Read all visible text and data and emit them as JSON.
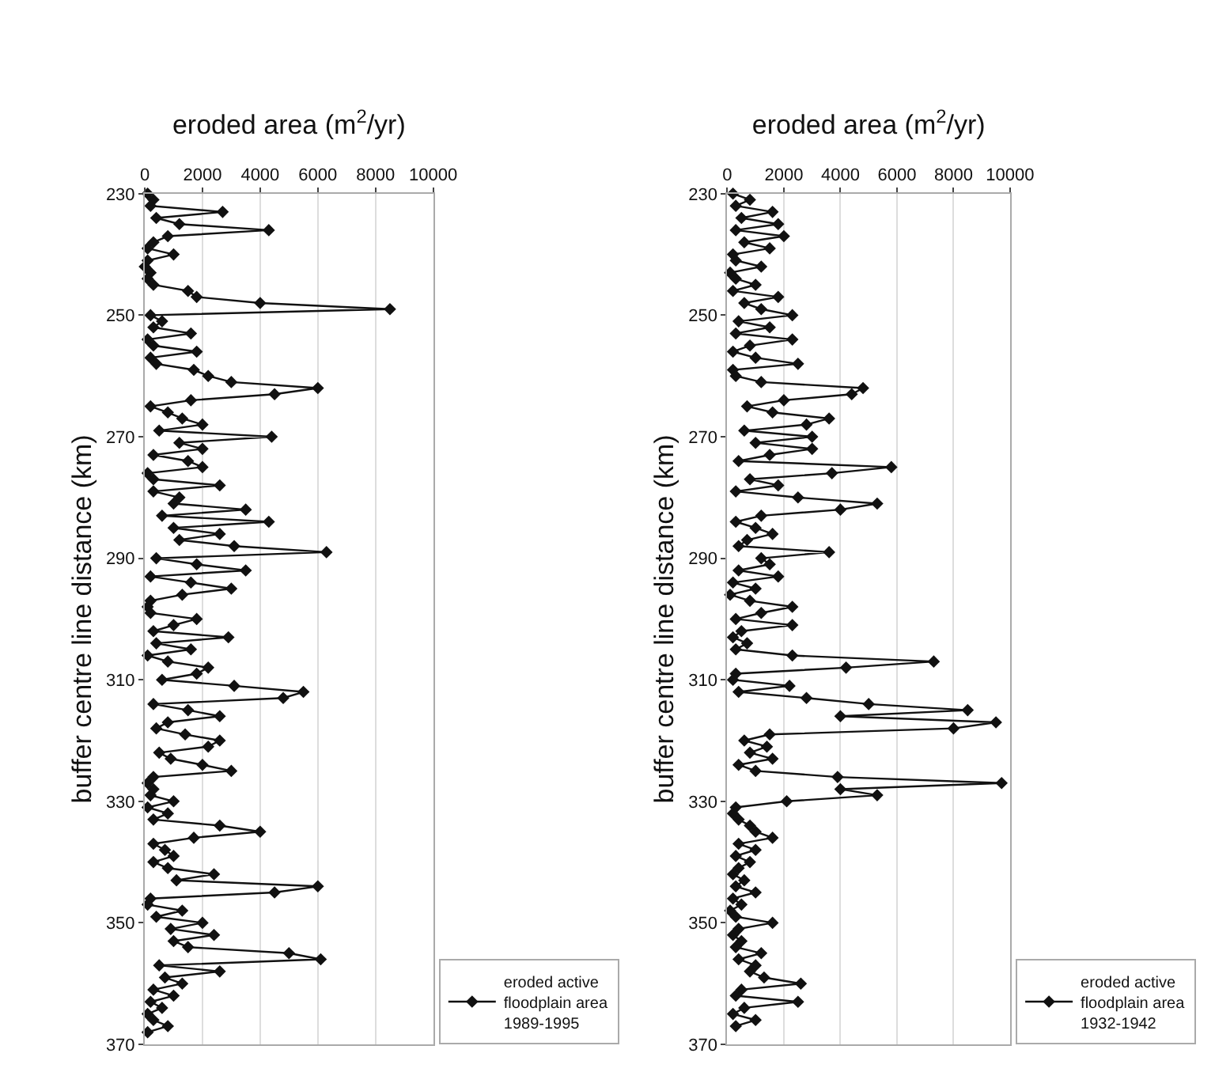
{
  "chart_data": [
    {
      "type": "line",
      "orientation": "horizontal",
      "ylabel": "buffer centre line distance (km)",
      "xlabel": "eroded area (m$^{2}$/yr)",
      "ylim": [
        370,
        230
      ],
      "yticks": [
        230,
        250,
        270,
        290,
        310,
        330,
        350,
        370
      ],
      "xlim": [
        0,
        10000
      ],
      "xticks": [
        0,
        2000,
        4000,
        6000,
        8000,
        10000
      ],
      "grid": "x",
      "legend": "right",
      "marker": "diamond",
      "line_style": "solid",
      "x": [
        230,
        231,
        232,
        233,
        234,
        235,
        236,
        237,
        238,
        239,
        240,
        241,
        242,
        243,
        244,
        245,
        246,
        247,
        248,
        249,
        250,
        251,
        252,
        253,
        254,
        255,
        256,
        257,
        258,
        259,
        260,
        261,
        262,
        263,
        264,
        265,
        266,
        267,
        268,
        269,
        270,
        271,
        272,
        273,
        274,
        275,
        276,
        277,
        278,
        279,
        280,
        281,
        282,
        283,
        284,
        285,
        286,
        287,
        288,
        289,
        290,
        291,
        292,
        293,
        294,
        295,
        296,
        297,
        298,
        299,
        300,
        301,
        302,
        303,
        304,
        305,
        306,
        307,
        308,
        309,
        310,
        311,
        312,
        313,
        314,
        315,
        316,
        317,
        318,
        319,
        320,
        321,
        322,
        323,
        324,
        325,
        326,
        327,
        328,
        329,
        330,
        331,
        332,
        333,
        334,
        335,
        336,
        337,
        338,
        339,
        340,
        341,
        342,
        343,
        344,
        345,
        346,
        347,
        348,
        349,
        350,
        351,
        352,
        353,
        354,
        355,
        356,
        357,
        358,
        359,
        360,
        361,
        362,
        363,
        364,
        365,
        366,
        367,
        368
      ],
      "series": [
        {
          "name": "eroded active floodplain area 1989-1995",
          "color": "#111111",
          "values": [
            100,
            300,
            200,
            2700,
            400,
            1200,
            4300,
            800,
            300,
            100,
            1000,
            100,
            0,
            200,
            100,
            300,
            1500,
            1800,
            4000,
            8500,
            200,
            600,
            300,
            1600,
            100,
            300,
            1800,
            200,
            400,
            1700,
            2200,
            3000,
            6000,
            4500,
            1600,
            200,
            800,
            1300,
            2000,
            500,
            4400,
            1200,
            2000,
            300,
            1500,
            2000,
            100,
            300,
            2600,
            300,
            1200,
            1000,
            3500,
            600,
            4300,
            1000,
            2600,
            1200,
            3100,
            6300,
            400,
            1800,
            3500,
            200,
            1600,
            3000,
            1300,
            200,
            100,
            200,
            1800,
            1000,
            300,
            2900,
            400,
            1600,
            100,
            800,
            2200,
            1800,
            600,
            3100,
            5500,
            4800,
            300,
            1500,
            2600,
            800,
            400,
            1400,
            2600,
            2200,
            500,
            900,
            2000,
            3000,
            300,
            100,
            300,
            200,
            1000,
            100,
            800,
            300,
            2600,
            4000,
            1700,
            300,
            700,
            1000,
            300,
            800,
            2400,
            1100,
            6000,
            4500,
            200,
            100,
            1300,
            400,
            2000,
            900,
            2400,
            1000,
            1500,
            5000,
            6100,
            500,
            2600,
            700,
            1300,
            300,
            1000,
            200,
            600,
            100,
            300,
            800,
            100
          ]
        }
      ]
    },
    {
      "type": "line",
      "orientation": "horizontal",
      "ylabel": "buffer centre line distance (km)",
      "xlabel": "eroded area (m$^{2}$/yr)",
      "ylim": [
        370,
        230
      ],
      "yticks": [
        230,
        250,
        270,
        290,
        310,
        330,
        350,
        370
      ],
      "xlim": [
        0,
        10000
      ],
      "xticks": [
        0,
        2000,
        4000,
        6000,
        8000,
        10000
      ],
      "grid": "x",
      "legend": "right",
      "marker": "diamond",
      "line_style": "solid",
      "x": [
        230,
        231,
        232,
        233,
        234,
        235,
        236,
        237,
        238,
        239,
        240,
        241,
        242,
        243,
        244,
        245,
        246,
        247,
        248,
        249,
        250,
        251,
        252,
        253,
        254,
        255,
        256,
        257,
        258,
        259,
        260,
        261,
        262,
        263,
        264,
        265,
        266,
        267,
        268,
        269,
        270,
        271,
        272,
        273,
        274,
        275,
        276,
        277,
        278,
        279,
        280,
        281,
        282,
        283,
        284,
        285,
        286,
        287,
        288,
        289,
        290,
        291,
        292,
        293,
        294,
        295,
        296,
        297,
        298,
        299,
        300,
        301,
        302,
        303,
        304,
        305,
        306,
        307,
        308,
        309,
        310,
        311,
        312,
        313,
        314,
        315,
        316,
        317,
        318,
        319,
        320,
        321,
        322,
        323,
        324,
        325,
        326,
        327,
        328,
        329,
        330,
        331,
        332,
        333,
        334,
        335,
        336,
        337,
        338,
        339,
        340,
        341,
        342,
        343,
        344,
        345,
        346,
        347,
        348,
        349,
        350,
        351,
        352,
        353,
        354,
        355,
        356,
        357,
        358,
        359,
        360,
        361,
        362,
        363,
        364,
        365,
        366,
        367
      ],
      "series": [
        {
          "name": "eroded active floodplain area 1932-1942",
          "color": "#111111",
          "values": [
            200,
            800,
            300,
            1600,
            500,
            1800,
            300,
            2000,
            600,
            1500,
            200,
            300,
            1200,
            100,
            300,
            1000,
            200,
            1800,
            600,
            1200,
            2300,
            400,
            1500,
            300,
            2300,
            800,
            200,
            1000,
            2500,
            200,
            300,
            1200,
            4800,
            4400,
            2000,
            700,
            1600,
            3600,
            2800,
            600,
            3000,
            1000,
            3000,
            1500,
            400,
            5800,
            3700,
            800,
            1800,
            300,
            2500,
            5300,
            4000,
            1200,
            300,
            1000,
            1600,
            700,
            400,
            3600,
            1200,
            1500,
            400,
            1800,
            200,
            1000,
            100,
            800,
            2300,
            1200,
            300,
            2300,
            500,
            200,
            700,
            300,
            2300,
            7300,
            4200,
            300,
            200,
            2200,
            400,
            2800,
            5000,
            8500,
            4000,
            9500,
            8000,
            1500,
            600,
            1400,
            800,
            1600,
            400,
            1000,
            3900,
            9700,
            4000,
            5300,
            2100,
            300,
            200,
            400,
            800,
            1000,
            1600,
            400,
            1000,
            300,
            800,
            400,
            200,
            600,
            300,
            1000,
            200,
            500,
            100,
            300,
            1600,
            400,
            200,
            500,
            300,
            1200,
            400,
            1000,
            800,
            1300,
            2600,
            500,
            300,
            2500,
            600,
            200,
            1000,
            300
          ]
        }
      ]
    }
  ]
}
